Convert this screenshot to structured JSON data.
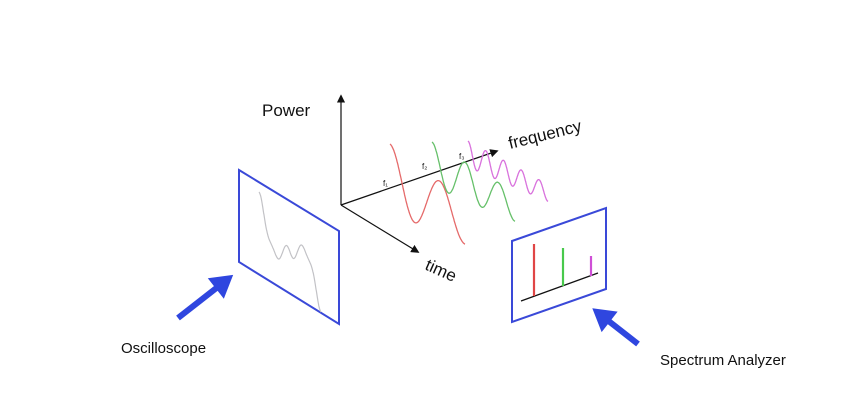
{
  "labels": {
    "power": "Power",
    "frequency": "frequency",
    "time": "time",
    "f1": "f₁",
    "f2": "f₂",
    "f3": "f₃",
    "oscilloscope": "Oscilloscope",
    "spectrum_analyzer": "Spectrum Analyzer"
  },
  "colors": {
    "axis": "#111111",
    "screen_frame": "#3a49d8",
    "pointer_arrow": "#2f46df",
    "wave_f1": "#e56a6a",
    "wave_f2": "#66c06a",
    "wave_f3": "#d870dc",
    "scope_trace": "#c2c2c6",
    "spec_f1": "#e04646",
    "spec_f2": "#48c94c",
    "spec_f3": "#cf4fd6"
  },
  "icons": {
    "oscilloscope_pointer": "arrow-up-right-icon",
    "spectrum_pointer": "arrow-up-left-icon"
  }
}
